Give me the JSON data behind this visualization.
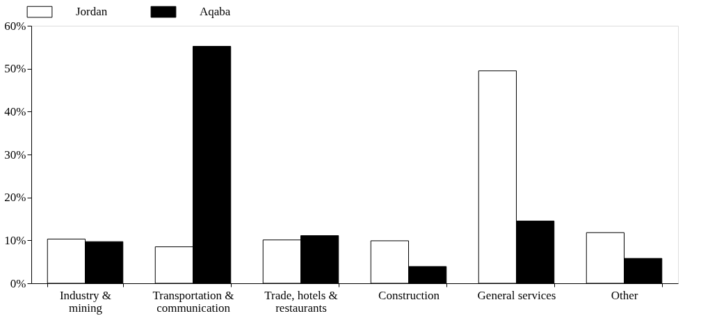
{
  "chart_data": {
    "type": "bar",
    "categories": [
      "Industry & mining",
      "Transportation & communication",
      "Trade, hotels & restaurants",
      "Construction",
      "General services",
      "Other"
    ],
    "series": [
      {
        "name": "Jordan",
        "color": "#ffffff",
        "values": [
          10.3,
          8.5,
          10.1,
          9.9,
          49.5,
          11.8
        ]
      },
      {
        "name": "Aqaba",
        "color": "#000000",
        "values": [
          9.7,
          55.2,
          11.1,
          3.9,
          14.5,
          5.8
        ]
      }
    ],
    "ylim": [
      0,
      60
    ],
    "yticks": [
      {
        "value": 0,
        "label": "0%"
      },
      {
        "value": 10,
        "label": "10%"
      },
      {
        "value": 20,
        "label": "20%"
      },
      {
        "value": 30,
        "label": "30%"
      },
      {
        "value": 40,
        "label": "40%"
      },
      {
        "value": 50,
        "label": "50%"
      },
      {
        "value": 60,
        "label": "60%"
      }
    ],
    "grid": false,
    "legend": "top"
  }
}
